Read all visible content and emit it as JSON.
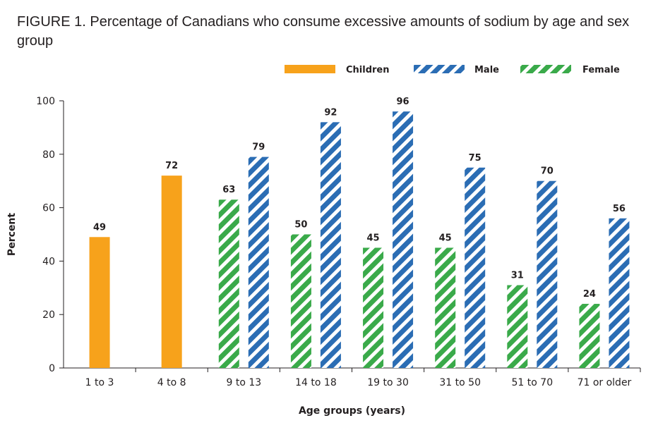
{
  "title": {
    "figure_label": "FIGURE 1.",
    "text": "Percentage of Canadians who consume excessive amounts of sodium by age and sex group"
  },
  "colors": {
    "children": "#f7a21b",
    "male": "#2b6db4",
    "female": "#3aaa4a"
  },
  "chart_data": {
    "type": "bar",
    "xlabel": "Age groups (years)",
    "ylabel": "Percent",
    "ylim": [
      0,
      100
    ],
    "yticks": [
      0,
      20,
      40,
      60,
      80,
      100
    ],
    "grid": false,
    "legend_placement": "top-right",
    "categories": [
      "1 to 3",
      "4 to 8",
      "9 to 13",
      "14 to 18",
      "19 to 30",
      "31 to 50",
      "51 to 70",
      "71 or older"
    ],
    "series": [
      {
        "name": "Children",
        "pattern": "solid",
        "values": [
          49,
          72,
          null,
          null,
          null,
          null,
          null,
          null
        ]
      },
      {
        "name": "Male",
        "pattern": "hatched",
        "values": [
          null,
          null,
          79,
          92,
          96,
          75,
          70,
          56
        ]
      },
      {
        "name": "Female",
        "pattern": "hatched",
        "values": [
          null,
          null,
          63,
          50,
          45,
          45,
          31,
          24
        ]
      }
    ]
  }
}
